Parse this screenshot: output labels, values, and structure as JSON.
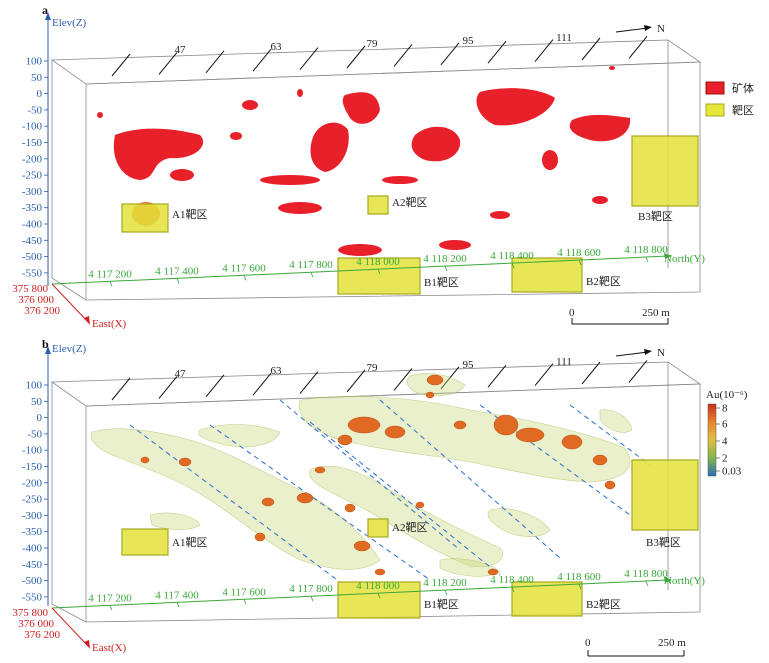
{
  "panels": [
    {
      "label": "a",
      "elev_axis_title": "Elev(Z)",
      "elev_ticks": [
        "100",
        "50",
        "0",
        "-50",
        "-100",
        "-150",
        "-200",
        "-250",
        "-300",
        "-350",
        "-400",
        "-450",
        "-500",
        "-550"
      ],
      "section_lines": [
        "47",
        "63",
        "79",
        "95",
        "111"
      ],
      "north_ticks": [
        "4 117 200",
        "4 117 400",
        "4 117 600",
        "4 117 800",
        "4 118 000",
        "4 118 200",
        "4 118 400",
        "4 118 600",
        "4 118 800"
      ],
      "north_axis_title": "North(Y)",
      "east_ticks": [
        "375 800",
        "376 000",
        "376 200"
      ],
      "east_axis_title": "East(X)",
      "north_arrow": "N",
      "targets": [
        "A1靶区",
        "A2靶区",
        "B1靶区",
        "B2靶区",
        "B3靶区"
      ],
      "scale_bar": {
        "start": "0",
        "end": "250 m"
      },
      "legend": [
        {
          "label": "矿体",
          "color": "#e8202a"
        },
        {
          "label": "靶区",
          "color": "#e6e63a"
        }
      ]
    },
    {
      "label": "b",
      "elev_axis_title": "Elev(Z)",
      "elev_ticks": [
        "100",
        "50",
        "0",
        "-50",
        "-100",
        "-150",
        "-200",
        "-250",
        "-300",
        "-350",
        "-400",
        "-450",
        "-500",
        "-550"
      ],
      "section_lines": [
        "47",
        "63",
        "79",
        "95",
        "111"
      ],
      "north_ticks": [
        "4 117 200",
        "4 117 400",
        "4 117 600",
        "4 117 800",
        "4 118 000",
        "4 118 200",
        "4 118 400",
        "4 118 600",
        "4 118 800"
      ],
      "north_axis_title": "North(Y)",
      "east_ticks": [
        "375 800",
        "376 000",
        "376 200"
      ],
      "east_axis_title": "East(X)",
      "north_arrow": "N",
      "targets": [
        "A1靶区",
        "A2靶区",
        "B1靶区",
        "B2靶区",
        "B3靶区"
      ],
      "scale_bar": {
        "start": "0",
        "end": "250 m"
      },
      "colorbar": {
        "title": "Au(10⁻⁶)",
        "ticks": [
          "8",
          "6",
          "4",
          "2",
          "0.03"
        ],
        "colors": [
          "#d8401c",
          "#e8822a",
          "#d4c84a",
          "#7fb54a",
          "#2a7fb8"
        ]
      }
    }
  ]
}
